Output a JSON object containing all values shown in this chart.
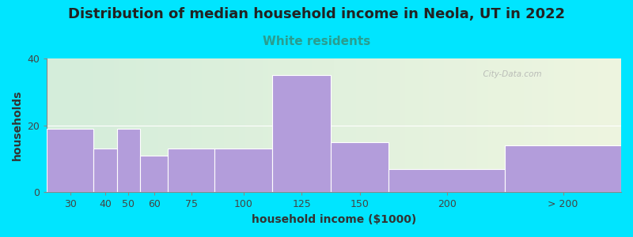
{
  "title": "Distribution of median household income in Neola, UT in 2022",
  "subtitle": "White residents",
  "xlabel": "household income ($1000)",
  "ylabel": "households",
  "bin_edges": [
    15,
    35,
    45,
    55,
    67,
    87,
    112,
    137,
    162,
    212,
    262
  ],
  "bin_labels": [
    "30",
    "40",
    "50",
    "60",
    "75",
    "100",
    "125",
    "150",
    "200",
    "> 200"
  ],
  "values": [
    19,
    13,
    19,
    11,
    13,
    13,
    35,
    15,
    7,
    14
  ],
  "bar_color": "#b39ddb",
  "bar_edge_color": "#ffffff",
  "ylim": [
    0,
    40
  ],
  "yticks": [
    0,
    20,
    40
  ],
  "xlim": [
    15,
    262
  ],
  "background_outer": "#00e5ff",
  "background_inner_tl": "#d4edda",
  "background_inner_tr": "#eef5e0",
  "title_fontsize": 13,
  "subtitle_fontsize": 11,
  "subtitle_color": "#2a9d8f",
  "axis_label_fontsize": 10,
  "tick_fontsize": 9,
  "watermark": "  City-Data.com"
}
